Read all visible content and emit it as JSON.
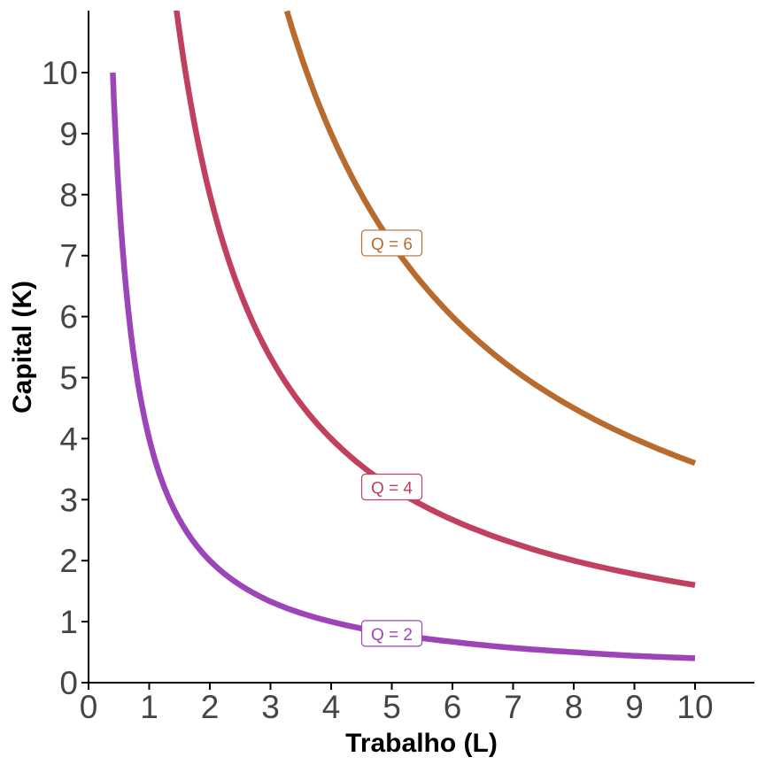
{
  "chart_data": {
    "type": "line",
    "xlabel": "Trabalho (L)",
    "ylabel": "Capital (K)",
    "xlim": [
      0,
      11
    ],
    "ylim": [
      0,
      11
    ],
    "xticks": [
      "0",
      "1",
      "2",
      "3",
      "4",
      "5",
      "6",
      "7",
      "8",
      "9",
      "10"
    ],
    "yticks": [
      "0",
      "1",
      "2",
      "3",
      "4",
      "5",
      "6",
      "7",
      "8",
      "9",
      "10"
    ],
    "grid": false,
    "legend": "none",
    "series": [
      {
        "name": "Q = 2",
        "color": "#9b45b8",
        "x": [
          0.4,
          0.5,
          0.6,
          0.8,
          1,
          1.25,
          1.5,
          2,
          2.5,
          3,
          4,
          5,
          6,
          7,
          8,
          9,
          10
        ],
        "y": [
          10,
          8,
          6.67,
          5,
          4,
          3.2,
          2.67,
          2,
          1.6,
          1.33,
          1,
          0.8,
          0.67,
          0.57,
          0.5,
          0.44,
          0.4
        ],
        "label_at": [
          5,
          0.8
        ]
      },
      {
        "name": "Q = 4",
        "color": "#c1405e",
        "x": [
          1.45,
          1.6,
          2,
          2.5,
          3,
          3.5,
          4,
          5,
          6,
          7,
          8,
          9,
          10
        ],
        "y": [
          11.03,
          10,
          8,
          6.4,
          5.33,
          4.57,
          4,
          3.2,
          2.67,
          2.29,
          2,
          1.78,
          1.6
        ],
        "label_at": [
          5,
          3.2
        ]
      },
      {
        "name": "Q = 6",
        "color": "#b86b2e",
        "x": [
          3.27,
          3.6,
          4,
          4.5,
          5,
          6,
          7,
          8,
          9,
          10
        ],
        "y": [
          11.01,
          10,
          9,
          8,
          7.2,
          6,
          5.14,
          4.5,
          4,
          3.6
        ],
        "label_at": [
          5,
          7.2
        ]
      }
    ]
  }
}
